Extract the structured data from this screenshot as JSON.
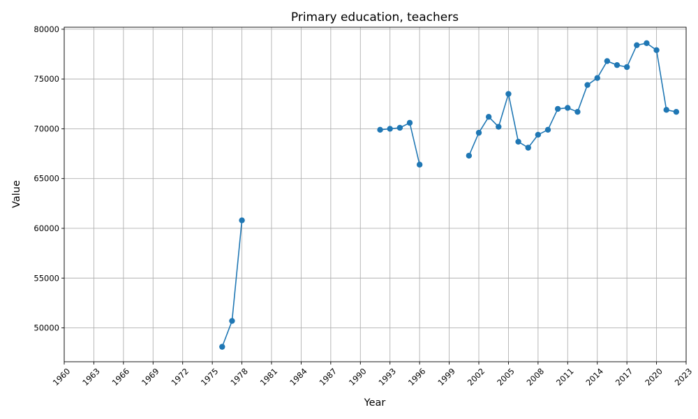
{
  "chart_data": {
    "type": "line",
    "title": "Primary education, teachers",
    "xlabel": "Year",
    "ylabel": "Value",
    "xlim": [
      1960,
      2023
    ],
    "ylim": [
      46600,
      80200
    ],
    "x_ticks": [
      1960,
      1963,
      1966,
      1969,
      1972,
      1975,
      1978,
      1981,
      1984,
      1987,
      1990,
      1993,
      1996,
      1999,
      2002,
      2005,
      2008,
      2011,
      2014,
      2017,
      2020,
      2023
    ],
    "y_ticks": [
      50000,
      55000,
      60000,
      65000,
      70000,
      75000,
      80000
    ],
    "grid": true,
    "color": "#1f77b4",
    "series": [
      {
        "segments": [
          [
            [
              1976,
              48100
            ],
            [
              1977,
              50700
            ],
            [
              1978,
              60800
            ]
          ],
          [
            [
              1992,
              69900
            ],
            [
              1993,
              70000
            ],
            [
              1994,
              70100
            ],
            [
              1995,
              70600
            ],
            [
              1996,
              66400
            ]
          ],
          [
            [
              2001,
              67300
            ],
            [
              2002,
              69600
            ],
            [
              2003,
              71200
            ],
            [
              2004,
              70200
            ],
            [
              2005,
              73500
            ],
            [
              2006,
              68700
            ],
            [
              2007,
              68100
            ],
            [
              2008,
              69400
            ],
            [
              2009,
              69900
            ],
            [
              2010,
              72000
            ],
            [
              2011,
              72100
            ],
            [
              2012,
              71700
            ],
            [
              2013,
              74400
            ],
            [
              2014,
              75100
            ],
            [
              2015,
              76800
            ],
            [
              2016,
              76400
            ],
            [
              2017,
              76200
            ],
            [
              2018,
              78400
            ],
            [
              2019,
              78600
            ],
            [
              2020,
              77900
            ],
            [
              2021,
              71900
            ],
            [
              2022,
              71700
            ]
          ]
        ]
      }
    ]
  }
}
